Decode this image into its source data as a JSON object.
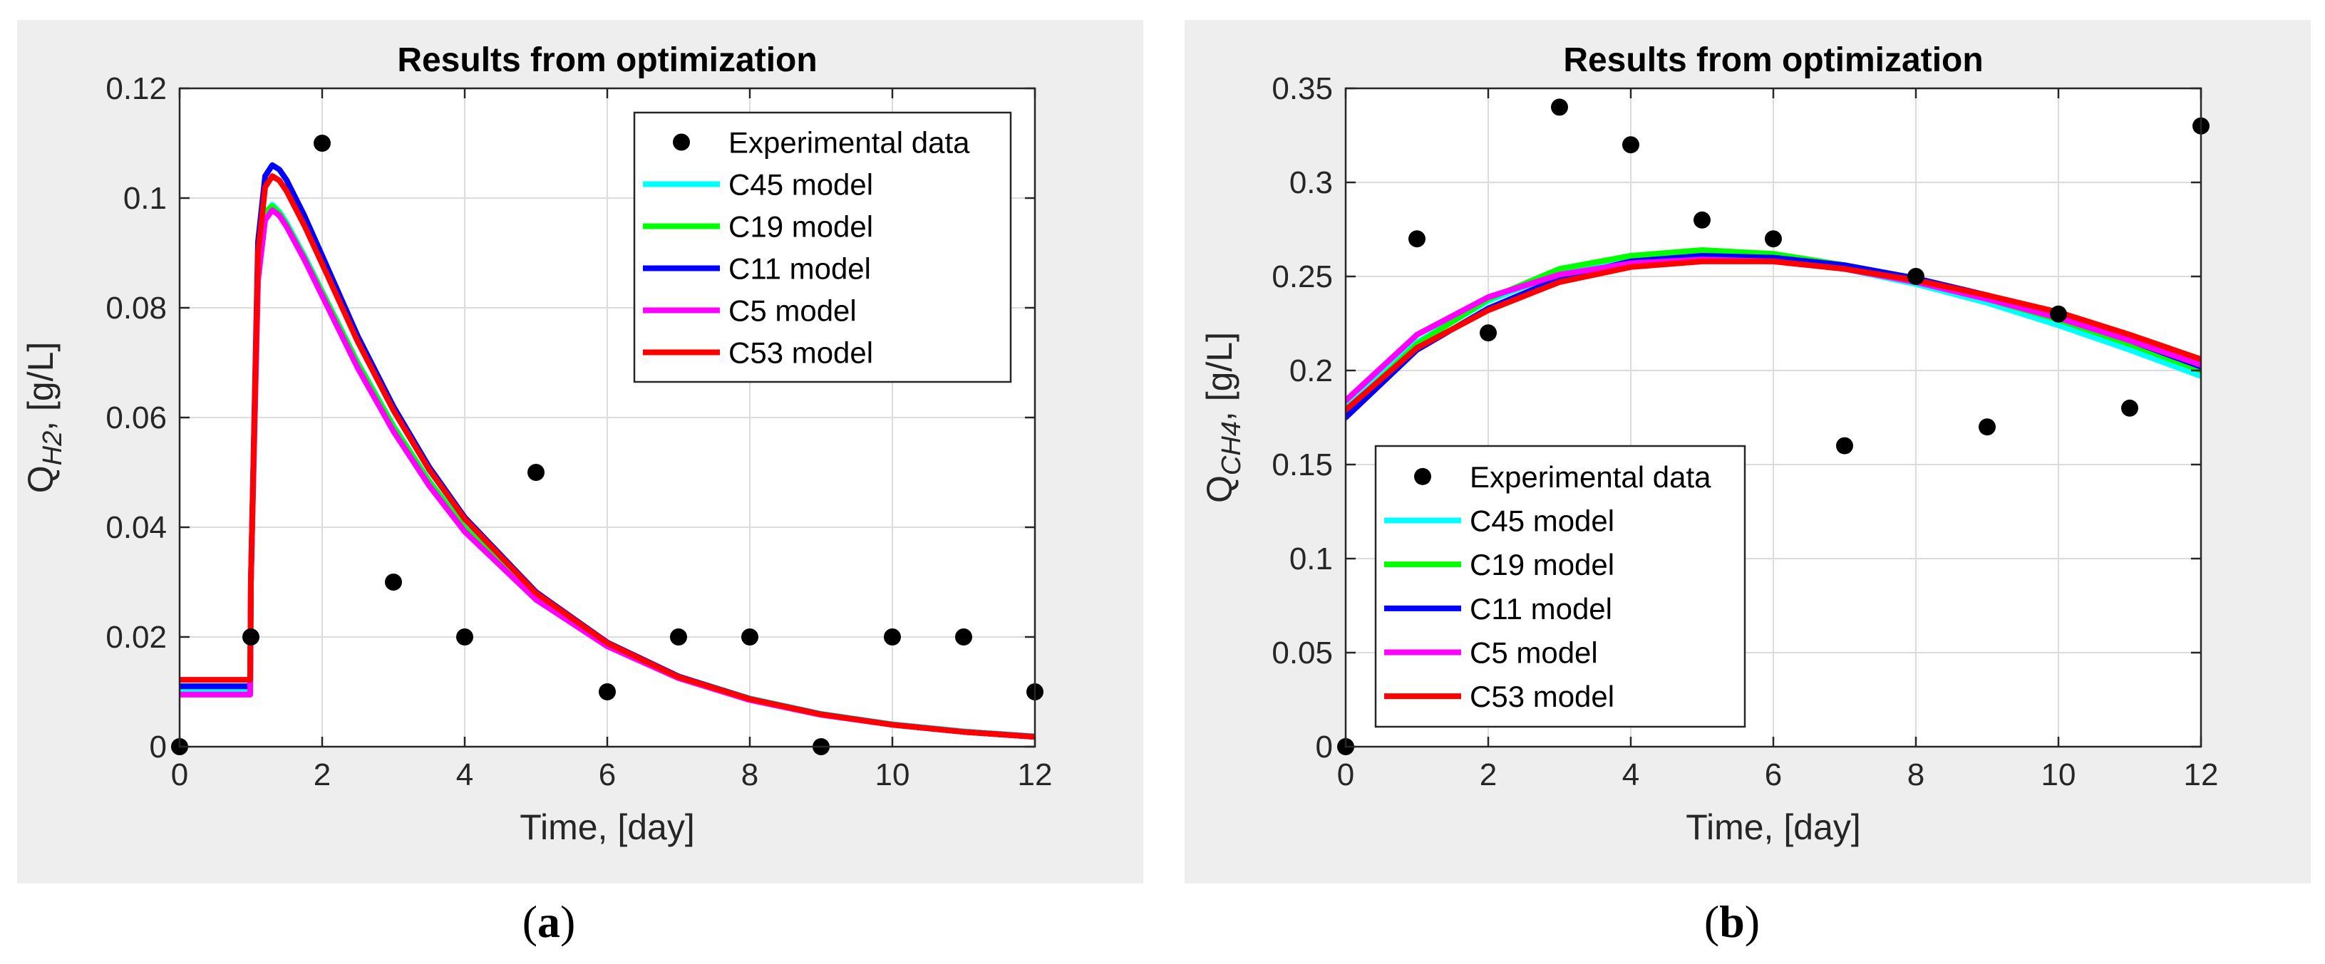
{
  "figure": {
    "captions": [
      "(a)",
      "(b)"
    ],
    "caption_parts": [
      {
        "open": "(",
        "letter": "a",
        "close": ")"
      },
      {
        "open": "(",
        "letter": "b",
        "close": ")"
      }
    ]
  },
  "colors": {
    "panel_bg": "#eeeeee",
    "axes_bg": "#ffffff",
    "grid": "#dcdcdc",
    "C45": "#00ffff",
    "C19": "#00ff00",
    "C11": "#0000ff",
    "C5": "#ff00ff",
    "C53": "#ff0000",
    "experimental": "#000000"
  },
  "chart_data": [
    {
      "id": "a",
      "type": "line",
      "title": "Results from optimization",
      "xlabel": "Time, [day]",
      "ylabel": {
        "base": "Q",
        "sub": "H2",
        "suffix": ", [g/L]"
      },
      "xlim": [
        0,
        12
      ],
      "ylim": [
        0,
        0.12
      ],
      "xticks": [
        0,
        2,
        4,
        6,
        8,
        10,
        12
      ],
      "yticks": [
        0,
        0.02,
        0.04,
        0.06,
        0.08,
        0.1,
        0.12
      ],
      "ytick_labels": [
        "0",
        "0.02",
        "0.04",
        "0.06",
        "0.08",
        "0.1",
        "0.12"
      ],
      "grid": true,
      "legend_position": "top-right",
      "legend": [
        "Experimental data",
        "C45 model",
        "C19 model",
        "C11 model",
        "C5 model",
        "C53 model"
      ],
      "scatter": {
        "name": "Experimental data",
        "x": [
          0,
          1,
          2,
          3,
          4,
          5,
          6,
          7,
          8,
          9,
          10,
          11,
          12
        ],
        "y": [
          0,
          0.02,
          0.11,
          0.03,
          0.02,
          0.05,
          0.01,
          0.02,
          0.02,
          0,
          0.02,
          0.02,
          0.01
        ]
      },
      "series": [
        {
          "name": "C45 model",
          "x": [
            0,
            0.99,
            1,
            1.1,
            1.2,
            1.3,
            1.4,
            1.5,
            1.75,
            2,
            2.5,
            3,
            3.5,
            4,
            5,
            6,
            7,
            8,
            9,
            10,
            11,
            12
          ],
          "y": [
            0.0105,
            0.0105,
            0.03,
            0.085,
            0.097,
            0.0988,
            0.0975,
            0.0955,
            0.0895,
            0.083,
            0.07,
            0.0585,
            0.0485,
            0.04,
            0.0275,
            0.0188,
            0.0128,
            0.0088,
            0.006,
            0.0041,
            0.0028,
            0.0019
          ]
        },
        {
          "name": "C19 model",
          "x": [
            0,
            0.99,
            1,
            1.1,
            1.2,
            1.3,
            1.4,
            1.5,
            1.75,
            2,
            2.5,
            3,
            3.5,
            4,
            5,
            6,
            7,
            8,
            9,
            10,
            11,
            12
          ],
          "y": [
            0.011,
            0.011,
            0.03,
            0.086,
            0.0975,
            0.0985,
            0.0972,
            0.0952,
            0.0892,
            0.0828,
            0.0698,
            0.0583,
            0.0483,
            0.0398,
            0.0273,
            0.0186,
            0.0127,
            0.0087,
            0.0059,
            0.004,
            0.0027,
            0.0018
          ]
        },
        {
          "name": "C11 model",
          "x": [
            0,
            0.99,
            1,
            1.1,
            1.2,
            1.3,
            1.4,
            1.5,
            1.75,
            2,
            2.5,
            3,
            3.5,
            4,
            5,
            6,
            7,
            8,
            9,
            10,
            11,
            12
          ],
          "y": [
            0.011,
            0.011,
            0.03,
            0.092,
            0.104,
            0.106,
            0.1052,
            0.1033,
            0.0968,
            0.0895,
            0.0748,
            0.062,
            0.051,
            0.0418,
            0.0282,
            0.019,
            0.0128,
            0.0087,
            0.0059,
            0.004,
            0.0027,
            0.0018
          ]
        },
        {
          "name": "C5 model",
          "x": [
            0,
            0.99,
            1,
            1.1,
            1.2,
            1.3,
            1.4,
            1.5,
            1.75,
            2,
            2.5,
            3,
            3.5,
            4,
            5,
            6,
            7,
            8,
            9,
            10,
            11,
            12
          ],
          "y": [
            0.0095,
            0.0095,
            0.03,
            0.085,
            0.096,
            0.0978,
            0.0968,
            0.0948,
            0.0888,
            0.0822,
            0.069,
            0.0575,
            0.0476,
            0.0392,
            0.0268,
            0.0183,
            0.0125,
            0.0085,
            0.0058,
            0.004,
            0.0027,
            0.0018
          ]
        },
        {
          "name": "C53 model",
          "x": [
            0,
            0.99,
            1,
            1.1,
            1.2,
            1.3,
            1.4,
            1.5,
            1.75,
            2,
            2.5,
            3,
            3.5,
            4,
            5,
            6,
            7,
            8,
            9,
            10,
            11,
            12
          ],
          "y": [
            0.0122,
            0.0122,
            0.03,
            0.09,
            0.102,
            0.104,
            0.1032,
            0.1013,
            0.095,
            0.088,
            0.0738,
            0.0613,
            0.0505,
            0.0415,
            0.028,
            0.0189,
            0.0127,
            0.0087,
            0.0059,
            0.004,
            0.0027,
            0.0018
          ]
        }
      ]
    },
    {
      "id": "b",
      "type": "line",
      "title": "Results from optimization",
      "xlabel": "Time, [day]",
      "ylabel": {
        "base": "Q",
        "sub": "CH4",
        "suffix": ", [g/L]"
      },
      "xlim": [
        0,
        12
      ],
      "ylim": [
        0,
        0.35
      ],
      "xticks": [
        0,
        2,
        4,
        6,
        8,
        10,
        12
      ],
      "yticks": [
        0,
        0.05,
        0.1,
        0.15,
        0.2,
        0.25,
        0.3,
        0.35
      ],
      "ytick_labels": [
        "0",
        "0.05",
        "0.1",
        "0.15",
        "0.2",
        "0.25",
        "0.3",
        "0.35"
      ],
      "grid": true,
      "legend_position": "bottom-left",
      "legend": [
        "Experimental data",
        "C45 model",
        "C19 model",
        "C11 model",
        "C5 model",
        "C53 model"
      ],
      "scatter": {
        "name": "Experimental data",
        "x": [
          0,
          1,
          2,
          3,
          4,
          5,
          6,
          7,
          8,
          9,
          10,
          11,
          12
        ],
        "y": [
          0,
          0.27,
          0.22,
          0.34,
          0.32,
          0.28,
          0.27,
          0.16,
          0.25,
          0.17,
          0.23,
          0.18,
          0.33
        ]
      },
      "series": [
        {
          "name": "C45 model",
          "x": [
            0,
            1,
            2,
            3,
            4,
            5,
            6,
            7,
            8,
            9,
            10,
            11,
            12
          ],
          "y": [
            0.18,
            0.215,
            0.237,
            0.252,
            0.26,
            0.262,
            0.26,
            0.254,
            0.246,
            0.236,
            0.224,
            0.211,
            0.197
          ]
        },
        {
          "name": "C19 model",
          "x": [
            0,
            1,
            2,
            3,
            4,
            5,
            6,
            7,
            8,
            9,
            10,
            11,
            12
          ],
          "y": [
            0.178,
            0.214,
            0.238,
            0.254,
            0.261,
            0.264,
            0.262,
            0.256,
            0.248,
            0.238,
            0.227,
            0.214,
            0.2
          ]
        },
        {
          "name": "C11 model",
          "x": [
            0,
            1,
            2,
            3,
            4,
            5,
            6,
            7,
            8,
            9,
            10,
            11,
            12
          ],
          "y": [
            0.175,
            0.211,
            0.233,
            0.249,
            0.258,
            0.261,
            0.26,
            0.256,
            0.249,
            0.24,
            0.229,
            0.216,
            0.202
          ]
        },
        {
          "name": "C5 model",
          "x": [
            0,
            1,
            2,
            3,
            4,
            5,
            6,
            7,
            8,
            9,
            10,
            11,
            12
          ],
          "y": [
            0.184,
            0.219,
            0.239,
            0.251,
            0.257,
            0.259,
            0.258,
            0.254,
            0.247,
            0.238,
            0.228,
            0.216,
            0.203
          ]
        },
        {
          "name": "C53 model",
          "x": [
            0,
            1,
            2,
            3,
            4,
            5,
            6,
            7,
            8,
            9,
            10,
            11,
            12
          ],
          "y": [
            0.179,
            0.212,
            0.232,
            0.247,
            0.255,
            0.258,
            0.258,
            0.254,
            0.248,
            0.24,
            0.231,
            0.219,
            0.206
          ]
        }
      ]
    }
  ]
}
